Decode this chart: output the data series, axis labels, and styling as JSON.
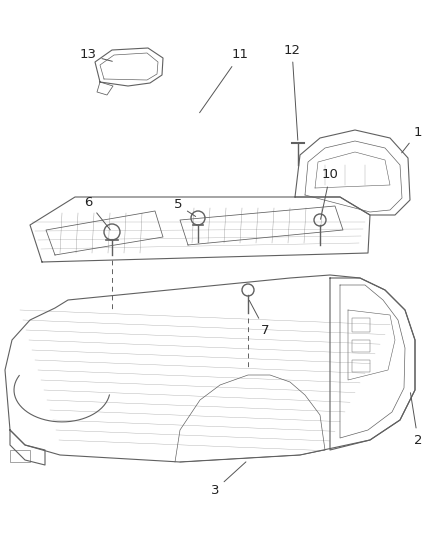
{
  "bg_color": "#ffffff",
  "fig_width": 4.38,
  "fig_height": 5.33,
  "dpi": 100,
  "image_b64": ""
}
